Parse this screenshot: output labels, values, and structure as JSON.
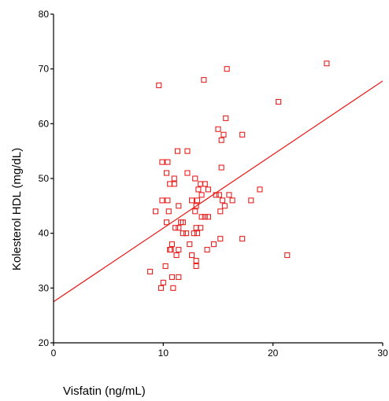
{
  "chart_data": {
    "type": "scatter",
    "title": "",
    "xlabel": "Visfatin (ng/mL)",
    "ylabel": "Kolesterol HDL (mg/dL)",
    "xlim": [
      0,
      30
    ],
    "ylim": [
      20,
      80
    ],
    "x_ticks": [
      0,
      10,
      20,
      30
    ],
    "y_ticks": [
      20,
      30,
      40,
      50,
      60,
      70,
      80
    ],
    "grid": false,
    "legend": "none",
    "colors": {
      "marker": "#e8211f",
      "fit_line": "#e8211f",
      "axis": "#000000"
    },
    "series": [
      {
        "points": [
          [
            9.6,
            67
          ],
          [
            13.7,
            68
          ],
          [
            15.8,
            70
          ],
          [
            24.9,
            71
          ],
          [
            20.5,
            64
          ],
          [
            15.7,
            61
          ],
          [
            15.0,
            59
          ],
          [
            15.5,
            58
          ],
          [
            17.2,
            58
          ],
          [
            15.3,
            57
          ],
          [
            11.3,
            55
          ],
          [
            12.2,
            55
          ],
          [
            15.3,
            52
          ],
          [
            9.9,
            53
          ],
          [
            10.4,
            53
          ],
          [
            10.3,
            51
          ],
          [
            12.2,
            51
          ],
          [
            11.0,
            50
          ],
          [
            12.9,
            50
          ],
          [
            13.4,
            49
          ],
          [
            13.8,
            49
          ],
          [
            11.0,
            49
          ],
          [
            10.6,
            49
          ],
          [
            14.1,
            48
          ],
          [
            13.2,
            48
          ],
          [
            18.8,
            48
          ],
          [
            13.5,
            47
          ],
          [
            14.8,
            47
          ],
          [
            15.1,
            47
          ],
          [
            16.0,
            47
          ],
          [
            12.6,
            46
          ],
          [
            13.1,
            46
          ],
          [
            15.4,
            46
          ],
          [
            16.3,
            46
          ],
          [
            18.0,
            46
          ],
          [
            9.9,
            46
          ],
          [
            10.4,
            46
          ],
          [
            11.4,
            45
          ],
          [
            13.0,
            45
          ],
          [
            15.6,
            45
          ],
          [
            9.3,
            44
          ],
          [
            10.5,
            44
          ],
          [
            12.9,
            44
          ],
          [
            15.2,
            44
          ],
          [
            13.8,
            43
          ],
          [
            14.1,
            43
          ],
          [
            13.5,
            43
          ],
          [
            10.3,
            42
          ],
          [
            11.6,
            42
          ],
          [
            11.8,
            42
          ],
          [
            11.1,
            41
          ],
          [
            11.4,
            41
          ],
          [
            13.0,
            41
          ],
          [
            13.4,
            41
          ],
          [
            11.8,
            40
          ],
          [
            12.1,
            40
          ],
          [
            12.8,
            40
          ],
          [
            13.1,
            40
          ],
          [
            15.2,
            39
          ],
          [
            17.2,
            39
          ],
          [
            12.4,
            38
          ],
          [
            14.6,
            38
          ],
          [
            10.8,
            38
          ],
          [
            10.7,
            37
          ],
          [
            11.4,
            37
          ],
          [
            14.0,
            37
          ],
          [
            10.6,
            37
          ],
          [
            11.2,
            36
          ],
          [
            12.6,
            36
          ],
          [
            13.0,
            35
          ],
          [
            21.3,
            36
          ],
          [
            13.0,
            34
          ],
          [
            10.2,
            34
          ],
          [
            8.8,
            33
          ],
          [
            10.8,
            32
          ],
          [
            11.4,
            32
          ],
          [
            10.0,
            31
          ],
          [
            9.8,
            30
          ],
          [
            10.9,
            30
          ]
        ]
      }
    ],
    "fit_line": {
      "x": [
        0,
        30
      ],
      "y": [
        27.5,
        67.8
      ]
    }
  }
}
